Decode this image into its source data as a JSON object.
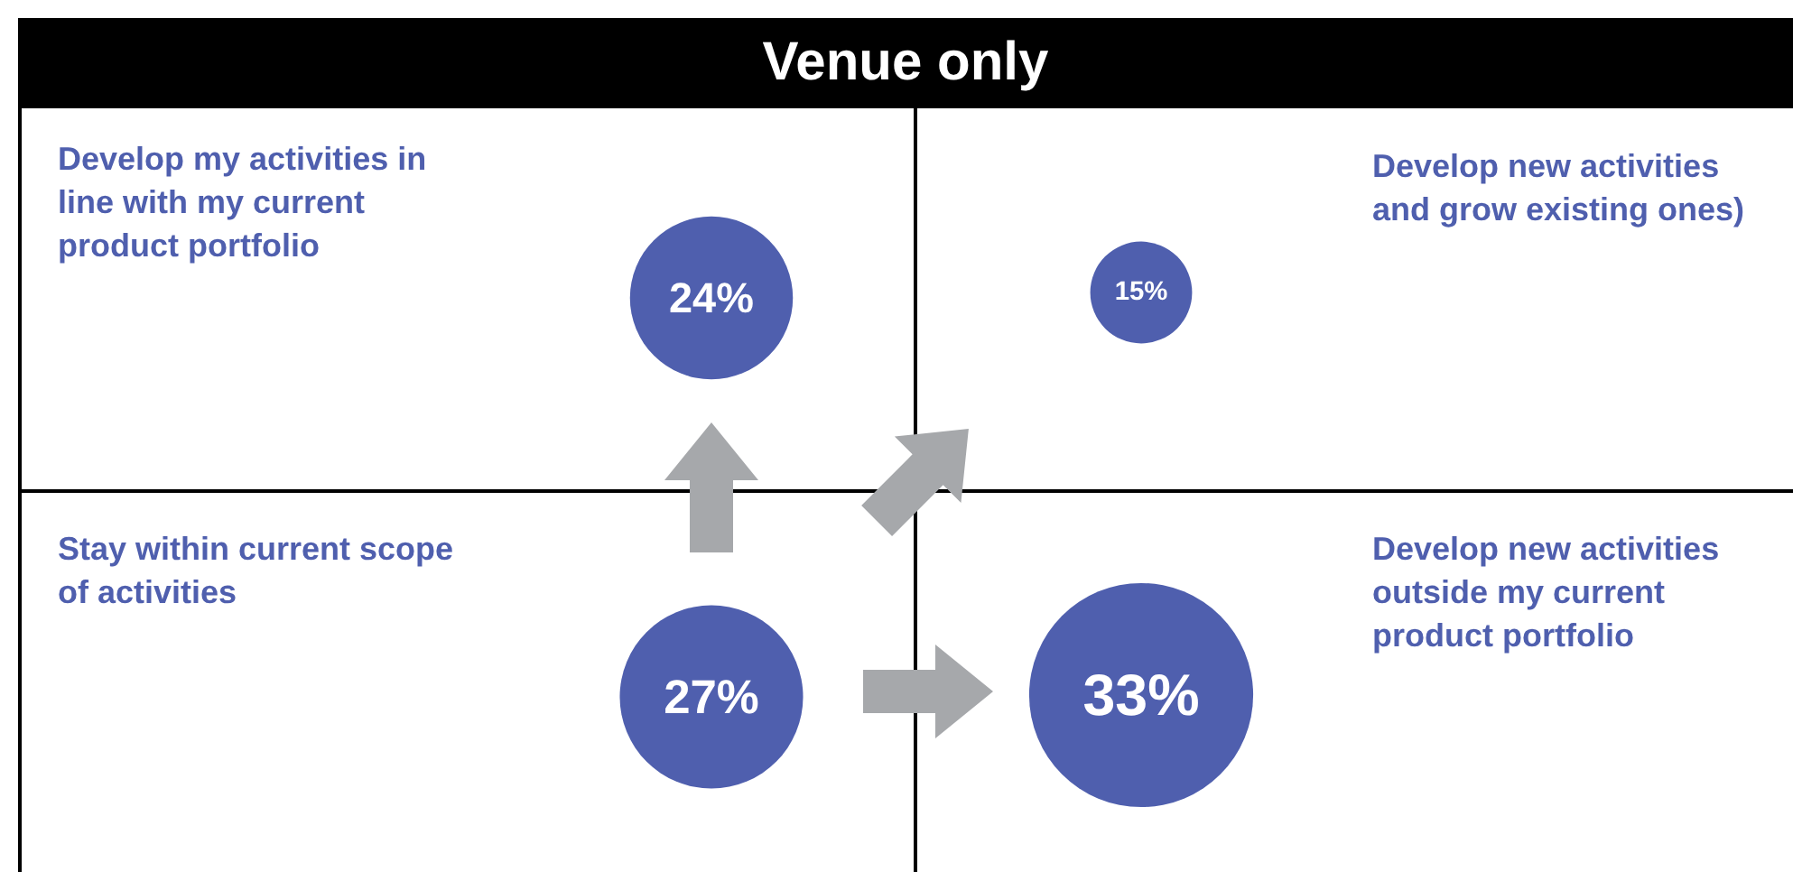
{
  "chart_data": {
    "type": "other",
    "title": "Venue only",
    "categories": [
      "Develop my activities in line with my current product portfolio",
      "Develop new activities and grow existing ones)",
      "Stay within current scope of activities",
      "Develop new activities outside my current product portfolio"
    ],
    "values": [
      24,
      15,
      27,
      33
    ],
    "value_labels": [
      "24%",
      "15%",
      "27%",
      "33%"
    ],
    "color": "#4f5fae"
  }
}
